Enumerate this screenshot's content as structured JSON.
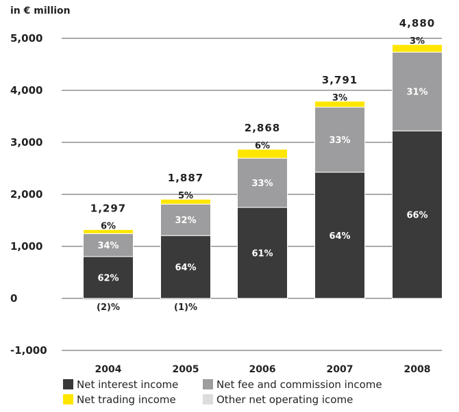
{
  "chart_data": {
    "type": "bar",
    "stacked": true,
    "unit_label": "in € million",
    "categories": [
      "2004",
      "2005",
      "2006",
      "2007",
      "2008"
    ],
    "totals": [
      "1,297",
      "1,887",
      "2,868",
      "3,791",
      "4,880"
    ],
    "ylim": [
      -1000,
      5000
    ],
    "yticks": [
      5000,
      4000,
      3000,
      2000,
      1000,
      0,
      -1000
    ],
    "ytick_labels": [
      "5,000",
      "4,000",
      "3,000",
      "2,000",
      "1,000",
      "0",
      "-1,000"
    ],
    "grid": true,
    "legend_position": "bottom",
    "series": [
      {
        "name": "Net interest income",
        "color": "#3a3a3a",
        "values": [
          804,
          1208,
          1749,
          2426,
          3221
        ],
        "labels": [
          "62%",
          "64%",
          "61%",
          "64%",
          "66%"
        ]
      },
      {
        "name": "Net fee and commission income",
        "color": "#9d9d9f",
        "values": [
          441,
          604,
          946,
          1251,
          1513
        ],
        "labels": [
          "34%",
          "32%",
          "33%",
          "33%",
          "31%"
        ]
      },
      {
        "name": "Net trading income",
        "color": "#ffe600",
        "values": [
          78,
          94,
          172,
          114,
          146
        ],
        "labels": [
          "6%",
          "5%",
          "6%",
          "3%",
          "3%"
        ]
      },
      {
        "name": "Other net operating icome",
        "color": "#dcdcdc",
        "values": [
          -26,
          -19,
          0,
          0,
          0
        ],
        "labels": [
          "(2)%",
          "(1)%",
          "",
          "",
          ""
        ]
      }
    ]
  }
}
